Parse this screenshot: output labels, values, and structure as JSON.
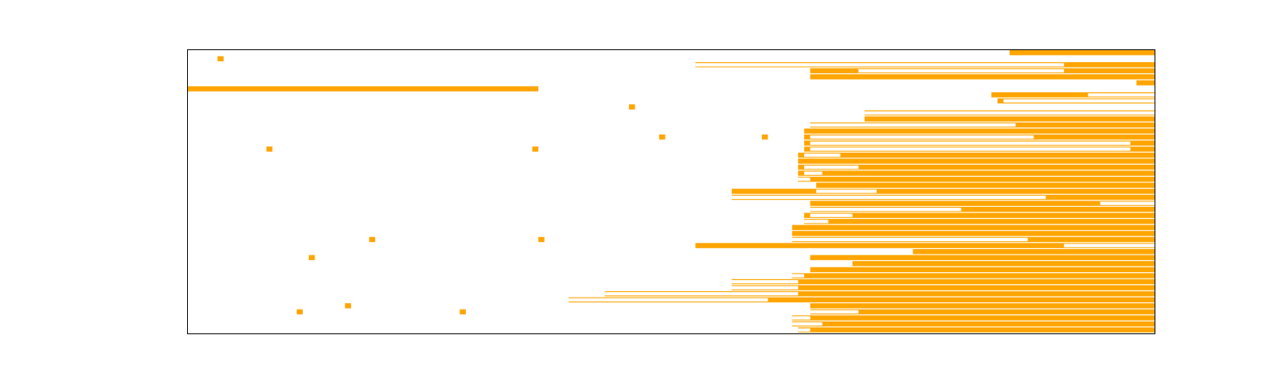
{
  "chart_data": {
    "type": "heatmap",
    "title": "",
    "xlabel": "",
    "ylabel": "",
    "xlim": [
      0,
      160
    ],
    "ylim": [
      0,
      47
    ],
    "fill_color": "#ffa500",
    "background_color": "#ffffff",
    "frame_color": "#000000",
    "grid": false,
    "legend": "none",
    "rows": [
      {
        "row": 0,
        "segments": [
          [
            136,
            160
          ]
        ]
      },
      {
        "row": 1,
        "segments": [
          [
            4.9,
            5.9
          ]
        ]
      },
      {
        "row": 2,
        "segments": [
          [
            84,
            145
          ],
          [
            145,
            160
          ]
        ]
      },
      {
        "row": 3,
        "segments": [
          [
            103,
            111
          ],
          [
            111,
            160
          ]
        ]
      },
      {
        "row": 4,
        "segments": [
          [
            103,
            160
          ]
        ]
      },
      {
        "row": 5,
        "segments": [
          [
            157,
            160
          ]
        ]
      },
      {
        "row": 6,
        "segments": [
          [
            0,
            58
          ]
        ]
      },
      {
        "row": 7,
        "segments": [
          [
            133,
            160
          ]
        ]
      },
      {
        "row": 8,
        "segments": [
          [
            134,
            160
          ]
        ]
      },
      {
        "row": 9,
        "segments": [
          [
            73,
            74
          ]
        ]
      },
      {
        "row": 10,
        "segments": [
          [
            112,
            160
          ]
        ]
      },
      {
        "row": 11,
        "segments": [
          [
            112,
            160
          ]
        ]
      },
      {
        "row": 12,
        "segments": [
          [
            103,
            160
          ]
        ]
      },
      {
        "row": 13,
        "segments": [
          [
            102,
            160
          ]
        ]
      },
      {
        "row": 14,
        "segments": [
          [
            78,
            79
          ],
          [
            95,
            96
          ],
          [
            102,
            160
          ]
        ]
      },
      {
        "row": 15,
        "segments": [
          [
            102,
            160
          ]
        ]
      },
      {
        "row": 16,
        "segments": [
          [
            13,
            14
          ],
          [
            57,
            58
          ],
          [
            102,
            160
          ]
        ]
      },
      {
        "row": 17,
        "segments": [
          [
            101,
            160
          ]
        ]
      },
      {
        "row": 18,
        "segments": [
          [
            101,
            160
          ]
        ]
      },
      {
        "row": 19,
        "segments": [
          [
            101,
            160
          ]
        ]
      },
      {
        "row": 20,
        "segments": [
          [
            101,
            160
          ]
        ]
      },
      {
        "row": 21,
        "segments": [
          [
            101,
            160
          ]
        ]
      },
      {
        "row": 22,
        "segments": [
          [
            104,
            160
          ]
        ]
      },
      {
        "row": 23,
        "segments": [
          [
            90,
            160
          ]
        ]
      },
      {
        "row": 24,
        "segments": [
          [
            90,
            160
          ]
        ]
      },
      {
        "row": 25,
        "segments": [
          [
            103,
            160
          ]
        ]
      },
      {
        "row": 26,
        "segments": [
          [
            103,
            160
          ]
        ]
      },
      {
        "row": 27,
        "segments": [
          [
            102,
            160
          ]
        ]
      },
      {
        "row": 28,
        "segments": [
          [
            102,
            160
          ]
        ]
      },
      {
        "row": 29,
        "segments": [
          [
            100,
            160
          ]
        ]
      },
      {
        "row": 30,
        "segments": [
          [
            100,
            160
          ]
        ]
      },
      {
        "row": 31,
        "segments": [
          [
            30,
            31
          ],
          [
            58,
            59
          ],
          [
            100,
            160
          ]
        ]
      },
      {
        "row": 32,
        "segments": [
          [
            84,
            160
          ]
        ]
      },
      {
        "row": 33,
        "segments": [
          [
            120,
            160
          ]
        ]
      },
      {
        "row": 34,
        "segments": [
          [
            20,
            21
          ],
          [
            103,
            160
          ]
        ]
      },
      {
        "row": 35,
        "segments": [
          [
            110,
            160
          ]
        ]
      },
      {
        "row": 36,
        "segments": [
          [
            103,
            160
          ]
        ]
      },
      {
        "row": 37,
        "segments": [
          [
            100,
            160
          ]
        ]
      },
      {
        "row": 38,
        "segments": [
          [
            90,
            160
          ]
        ]
      },
      {
        "row": 39,
        "segments": [
          [
            90,
            160
          ]
        ]
      },
      {
        "row": 40,
        "segments": [
          [
            69,
            160
          ]
        ]
      },
      {
        "row": 41,
        "segments": [
          [
            63,
            160
          ]
        ]
      },
      {
        "row": 42,
        "segments": [
          [
            26,
            27
          ],
          [
            103,
            160
          ]
        ]
      },
      {
        "row": 43,
        "segments": [
          [
            18,
            19
          ],
          [
            45,
            46
          ],
          [
            103,
            160
          ]
        ]
      },
      {
        "row": 44,
        "segments": [
          [
            100,
            160
          ]
        ]
      },
      {
        "row": 45,
        "segments": [
          [
            100,
            160
          ]
        ]
      },
      {
        "row": 46,
        "segments": [
          [
            101,
            160
          ]
        ]
      }
    ],
    "gaps": [
      {
        "row": 2,
        "segments": [
          [
            84,
            145
          ]
        ]
      },
      {
        "row": 3,
        "segments": [
          [
            111,
            145
          ]
        ]
      },
      {
        "row": 5,
        "segments": [
          [
            103,
            157
          ]
        ]
      },
      {
        "row": 6,
        "segments": [
          [
            133,
            157
          ]
        ]
      },
      {
        "row": 7,
        "segments": [
          [
            149,
            160
          ]
        ]
      },
      {
        "row": 8,
        "segments": [
          [
            135,
            160
          ]
        ]
      },
      {
        "row": 10,
        "segments": [
          [
            112,
            160
          ]
        ]
      },
      {
        "row": 11,
        "segments": [
          [
            103,
            110
          ]
        ]
      },
      {
        "row": 12,
        "segments": [
          [
            103,
            137
          ]
        ]
      },
      {
        "row": 14,
        "segments": [
          [
            103,
            140
          ]
        ]
      },
      {
        "row": 15,
        "segments": [
          [
            103,
            156
          ]
        ]
      },
      {
        "row": 16,
        "segments": [
          [
            103,
            156
          ]
        ]
      },
      {
        "row": 17,
        "segments": [
          [
            102,
            108
          ]
        ]
      },
      {
        "row": 19,
        "segments": [
          [
            102,
            111
          ]
        ]
      },
      {
        "row": 20,
        "segments": [
          [
            102,
            105
          ]
        ]
      },
      {
        "row": 21,
        "segments": [
          [
            101,
            103
          ]
        ]
      },
      {
        "row": 23,
        "segments": [
          [
            104,
            114
          ]
        ]
      },
      {
        "row": 24,
        "segments": [
          [
            90,
            142
          ]
        ]
      },
      {
        "row": 25,
        "segments": [
          [
            151,
            160
          ]
        ]
      },
      {
        "row": 26,
        "segments": [
          [
            103,
            128
          ]
        ]
      },
      {
        "row": 27,
        "segments": [
          [
            103,
            110
          ]
        ]
      },
      {
        "row": 28,
        "segments": [
          [
            102,
            106
          ]
        ]
      },
      {
        "row": 31,
        "segments": [
          [
            84,
            139
          ]
        ]
      },
      {
        "row": 32,
        "segments": [
          [
            145,
            160
          ]
        ]
      },
      {
        "row": 33,
        "segments": [
          [
            120,
            120
          ]
        ]
      },
      {
        "row": 36,
        "segments": [
          [
            100,
            103
          ]
        ]
      },
      {
        "row": 37,
        "segments": [
          [
            100,
            102
          ]
        ]
      },
      {
        "row": 38,
        "segments": [
          [
            90,
            101
          ]
        ]
      },
      {
        "row": 39,
        "segments": [
          [
            90,
            101
          ]
        ]
      },
      {
        "row": 40,
        "segments": [
          [
            69,
            101
          ]
        ]
      },
      {
        "row": 41,
        "segments": [
          [
            63,
            96
          ]
        ]
      },
      {
        "row": 42,
        "segments": [
          [
            63,
            101
          ]
        ]
      },
      {
        "row": 43,
        "segments": [
          [
            103,
            111
          ]
        ]
      },
      {
        "row": 44,
        "segments": [
          [
            100,
            103
          ]
        ]
      },
      {
        "row": 45,
        "segments": [
          [
            100,
            105
          ]
        ]
      },
      {
        "row": 46,
        "segments": [
          [
            101,
            103
          ]
        ]
      }
    ]
  }
}
